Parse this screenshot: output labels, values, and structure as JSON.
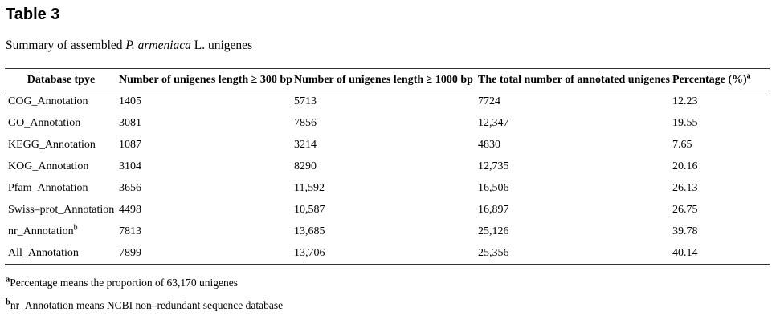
{
  "header": {
    "title": "Table 3"
  },
  "caption": {
    "prefix": "Summary of assembled ",
    "italic": "P. armeniaca",
    "suffix": " L. unigenes"
  },
  "table": {
    "columns": [
      {
        "label": "Database tpye",
        "sup": ""
      },
      {
        "label": "Number of unigenes length ≥ 300 bp",
        "sup": ""
      },
      {
        "label": "Number of unigenes length ≥ 1000 bp",
        "sup": ""
      },
      {
        "label": "The total number of annotated unigenes",
        "sup": ""
      },
      {
        "label": "Percentage (%)",
        "sup": "a"
      }
    ],
    "rows": [
      {
        "cells": [
          "COG_Annotation",
          "1405",
          "5713",
          "7724",
          "12.23"
        ],
        "sup": ""
      },
      {
        "cells": [
          "GO_Annotation",
          "3081",
          "7856",
          "12,347",
          "19.55"
        ],
        "sup": ""
      },
      {
        "cells": [
          "KEGG_Annotation",
          "1087",
          "3214",
          "4830",
          "7.65"
        ],
        "sup": ""
      },
      {
        "cells": [
          "KOG_Annotation",
          "3104",
          "8290",
          "12,735",
          "20.16"
        ],
        "sup": ""
      },
      {
        "cells": [
          "Pfam_Annotation",
          "3656",
          "11,592",
          "16,506",
          "26.13"
        ],
        "sup": ""
      },
      {
        "cells": [
          "Swiss–prot_Annotation",
          "4498",
          "10,587",
          "16,897",
          "26.75"
        ],
        "sup": ""
      },
      {
        "cells": [
          "nr_Annotation",
          "7813",
          "13,685",
          "25,126",
          "39.78"
        ],
        "sup": "b"
      },
      {
        "cells": [
          "All_Annotation",
          "7899",
          "13,706",
          "25,356",
          "40.14"
        ],
        "sup": ""
      }
    ]
  },
  "footnotes": [
    {
      "sup": "a",
      "text": "Percentage means the proportion of 63,170 unigenes"
    },
    {
      "sup": "b",
      "text": "nr_Annotation means NCBI non–redundant sequence database"
    }
  ]
}
